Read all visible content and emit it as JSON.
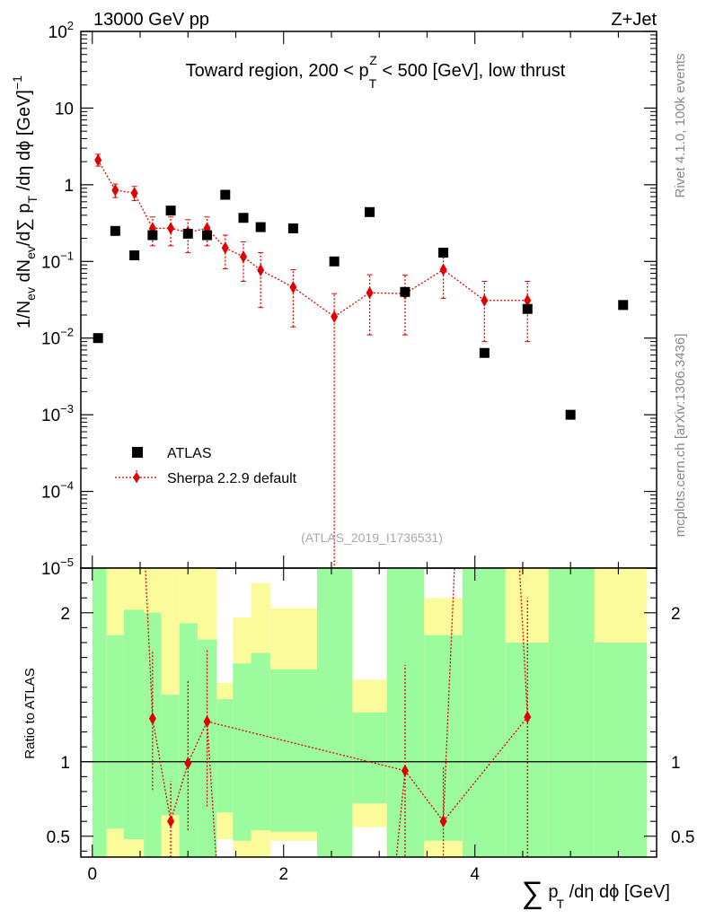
{
  "header": {
    "left": "13000 GeV pp",
    "right": "Z+Jet"
  },
  "side_labels": {
    "rivet": "Rivet 4.1.0,  100k events",
    "mcplots": "mcplots.cern.ch [arXiv:1306.3436]"
  },
  "chart_data": {
    "type": "scatter",
    "title": "Toward region, 200 < p_T^Z < 500 [GeV], low thrust",
    "watermark": "(ATLAS_2019_I1736531)",
    "xlabel": "∑ p_T /dη dϕ [GeV]",
    "ylabel": "1/N_ev dN_ev/d∑ p_T /dη dϕ  [GeV]^-1",
    "ratio_ylabel": "Ratio to ATLAS",
    "xlim": [
      -0.12,
      5.9
    ],
    "ylim_log10": [
      -5,
      2
    ],
    "ratio_ylim": [
      0.36,
      2.3
    ],
    "x_ticks": [
      "0",
      "2",
      "4"
    ],
    "y_ticks": [
      {
        "exp": 2,
        "label": "10",
        "sup": "2"
      },
      {
        "exp": 1,
        "label": "10",
        "sup": ""
      },
      {
        "exp": 0,
        "label": "1",
        "sup": ""
      },
      {
        "exp": -1,
        "label": "10",
        "sup": "−1"
      },
      {
        "exp": -2,
        "label": "10",
        "sup": "−2"
      },
      {
        "exp": -3,
        "label": "10",
        "sup": "−3"
      },
      {
        "exp": -4,
        "label": "10",
        "sup": "−4"
      },
      {
        "exp": -5,
        "label": "10",
        "sup": "−5"
      }
    ],
    "ratio_ticks": [
      {
        "value": 0.5,
        "label": "0.5"
      },
      {
        "value": 1,
        "label": "1"
      },
      {
        "value": 2,
        "label": "2"
      }
    ],
    "legend": {
      "position": "lower-left",
      "entries": [
        "ATLAS",
        "Sherpa 2.2.9 default"
      ]
    },
    "series": [
      {
        "name": "ATLAS",
        "color": "#000000",
        "marker": "square",
        "x": [
          0.06,
          0.24,
          0.44,
          0.63,
          0.82,
          1.0,
          1.2,
          1.39,
          1.58,
          1.76,
          2.1,
          2.53,
          2.9,
          3.27,
          3.67,
          4.1,
          4.55,
          5.0,
          5.55
        ],
        "y": [
          0.01,
          0.25,
          0.12,
          0.22,
          0.46,
          0.23,
          0.22,
          0.74,
          0.37,
          0.28,
          0.27,
          0.1,
          0.44,
          0.04,
          0.13,
          0.0064,
          0.024,
          0.001,
          0.027
        ]
      },
      {
        "name": "Sherpa 2.2.9 default",
        "color": "#e00000",
        "marker": "diamond",
        "x": [
          0.06,
          0.24,
          0.44,
          0.63,
          0.82,
          1.0,
          1.2,
          1.39,
          1.58,
          1.76,
          2.1,
          2.53,
          2.9,
          3.27,
          3.67,
          4.1,
          4.55
        ],
        "y": [
          2.1,
          0.85,
          0.78,
          0.27,
          0.27,
          0.24,
          0.27,
          0.15,
          0.115,
          0.077,
          0.046,
          0.019,
          0.039,
          0.038,
          0.078,
          0.031,
          0.031
        ],
        "y_low": [
          1.75,
          0.68,
          0.62,
          0.16,
          0.16,
          0.13,
          0.16,
          0.08,
          0.055,
          0.025,
          0.014,
          1e-06,
          0.011,
          0.011,
          0.033,
          0.009,
          0.009
        ],
        "y_high": [
          2.5,
          1.02,
          0.95,
          0.38,
          0.38,
          0.35,
          0.38,
          0.22,
          0.18,
          0.13,
          0.078,
          0.038,
          0.067,
          0.066,
          0.125,
          0.055,
          0.055
        ]
      }
    ],
    "ratio": {
      "reference_line": 1,
      "x": [
        0.63,
        0.82,
        1.0,
        1.2,
        3.27,
        3.67,
        4.55
      ],
      "y": [
        1.29,
        0.6,
        0.99,
        1.27,
        0.94,
        0.6,
        1.3
      ],
      "y_low": [
        0.81,
        0.36,
        0.54,
        0.7,
        0.27,
        0.25,
        0.36
      ],
      "y_high": [
        1.75,
        0.87,
        1.55,
        1.75,
        1.65,
        0.97,
        2.1
      ],
      "offscale_segments": [
        {
          "x": [
            0.54,
            0.63
          ],
          "y": [
            2.5,
            1.29
          ]
        },
        {
          "x": [
            1.2,
            1.3
          ],
          "y": [
            1.27,
            0.3
          ]
        },
        {
          "x": [
            3.17,
            3.27
          ],
          "y": [
            0.3,
            0.94
          ]
        },
        {
          "x": [
            3.67,
            3.8
          ],
          "y": [
            0.6,
            2.5
          ]
        },
        {
          "x": [
            4.45,
            4.55
          ],
          "y": [
            2.5,
            1.3
          ]
        }
      ],
      "bands": [
        {
          "x0": 0.0,
          "x1": 0.15,
          "g": [
            0.3,
            2.4
          ],
          "y": [
            0.3,
            2.4
          ]
        },
        {
          "x0": 0.15,
          "x1": 0.33,
          "g": [
            0.55,
            1.85
          ],
          "y": [
            0.3,
            2.4
          ]
        },
        {
          "x0": 0.33,
          "x1": 0.54,
          "g": [
            0.48,
            2.02
          ],
          "y": [
            0.3,
            2.4
          ]
        },
        {
          "x0": 0.54,
          "x1": 0.72,
          "g": [
            0.3,
            2.0
          ],
          "y": [
            0.3,
            2.4
          ]
        },
        {
          "x0": 0.72,
          "x1": 0.91,
          "g": [
            0.64,
            1.45
          ],
          "y": [
            0.3,
            2.4
          ]
        },
        {
          "x0": 0.91,
          "x1": 1.1,
          "g": [
            0.3,
            1.93
          ],
          "y": [
            0.3,
            2.4
          ]
        },
        {
          "x0": 1.1,
          "x1": 1.3,
          "g": [
            0.35,
            1.82
          ],
          "y": [
            0.3,
            2.4
          ]
        },
        {
          "x0": 1.3,
          "x1": 1.47,
          "g": [
            0.66,
            1.42
          ],
          "y": [
            0.48,
            1.53
          ]
        },
        {
          "x0": 1.47,
          "x1": 1.66,
          "g": [
            0.47,
            1.66
          ],
          "y": [
            0.3,
            1.97
          ]
        },
        {
          "x0": 1.66,
          "x1": 1.86,
          "g": [
            0.54,
            1.73
          ],
          "y": [
            0.3,
            2.2
          ]
        },
        {
          "x0": 1.86,
          "x1": 2.35,
          "g": [
            0.53,
            1.62
          ],
          "y": [
            0.47,
            2.03
          ]
        },
        {
          "x0": 2.35,
          "x1": 2.72,
          "g": [
            0.3,
            2.4
          ],
          "y": [
            0.3,
            2.4
          ]
        },
        {
          "x0": 2.72,
          "x1": 3.08,
          "g": [
            0.72,
            1.33
          ],
          "y": [
            0.56,
            1.55
          ]
        },
        {
          "x0": 3.08,
          "x1": 3.47,
          "g": [
            0.3,
            2.4
          ],
          "y": [
            0.3,
            2.4
          ]
        },
        {
          "x0": 3.47,
          "x1": 3.87,
          "g": [
            0.47,
            1.85
          ],
          "y": [
            0.3,
            2.1
          ]
        },
        {
          "x0": 3.87,
          "x1": 4.32,
          "g": [
            0.3,
            2.4
          ],
          "y": [
            0.3,
            2.4
          ]
        },
        {
          "x0": 4.32,
          "x1": 4.77,
          "g": [
            0.3,
            1.8
          ],
          "y": [
            0.3,
            2.4
          ]
        },
        {
          "x0": 4.77,
          "x1": 5.25,
          "g": [
            0.3,
            2.4
          ],
          "y": [
            0.3,
            2.4
          ]
        },
        {
          "x0": 5.25,
          "x1": 5.8,
          "g": [
            0.3,
            1.8
          ],
          "y": [
            0.3,
            2.4
          ]
        }
      ]
    }
  },
  "colors": {
    "data": "#000000",
    "mc": "#e00000",
    "band_green": "#9cfb9c",
    "band_yellow": "#fcfb9c",
    "side_text": "#888888",
    "watermark": "#a8a8a8"
  }
}
